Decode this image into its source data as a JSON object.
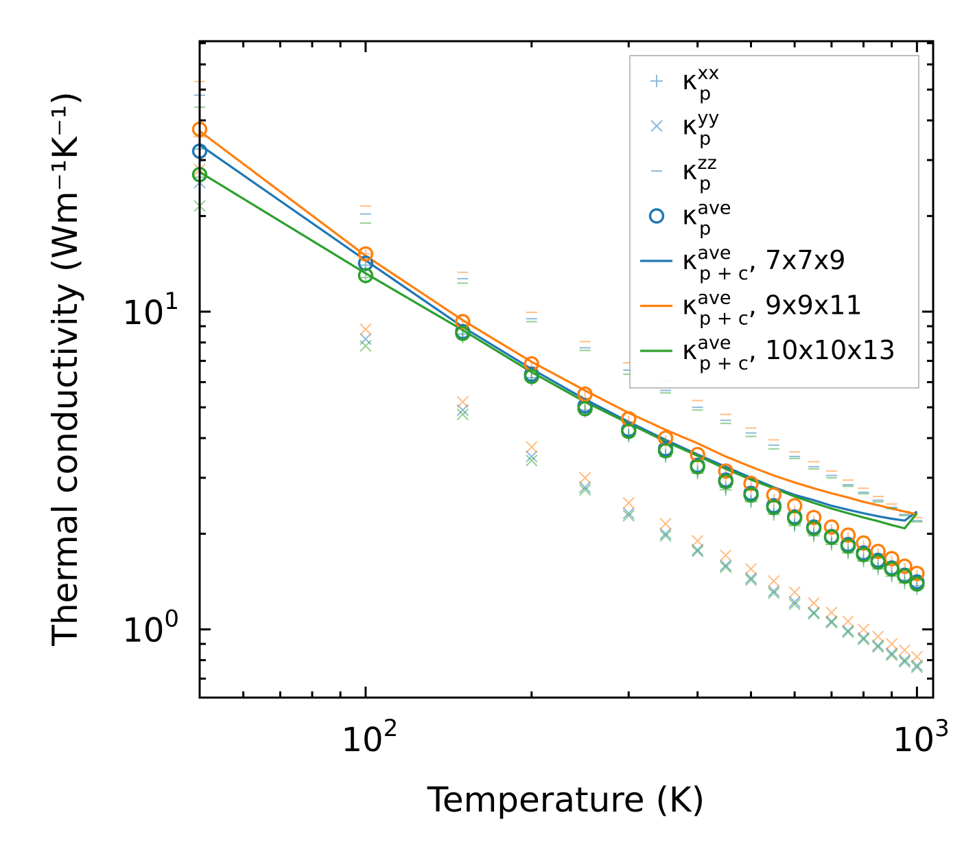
{
  "chart_data": {
    "type": "scatter",
    "scale": {
      "x": "log",
      "y": "log"
    },
    "xlabel": "Temperature (K)",
    "ylabel": "Thermal conductivity (Wm⁻¹K⁻¹)",
    "xlim": [
      50,
      1070
    ],
    "ylim": [
      0.61,
      71
    ],
    "x_ticks": [
      {
        "base": "10",
        "exp": "2",
        "value": 100
      },
      {
        "base": "10",
        "exp": "3",
        "value": 1000
      }
    ],
    "y_ticks": [
      {
        "base": "10",
        "exp": "0",
        "value": 1
      },
      {
        "base": "10",
        "exp": "1",
        "value": 10
      }
    ],
    "x": [
      50,
      100,
      150,
      200,
      250,
      300,
      350,
      400,
      450,
      500,
      550,
      600,
      650,
      700,
      750,
      800,
      850,
      900,
      950,
      1000
    ],
    "meshes": [
      {
        "name": "7x7x9",
        "color": "#1f77b4",
        "kxx": [
          32.5,
          14.0,
          8.5,
          6.2,
          4.9,
          4.1,
          3.55,
          3.15,
          2.8,
          2.55,
          2.35,
          2.15,
          2.0,
          1.88,
          1.77,
          1.67,
          1.58,
          1.5,
          1.43,
          1.37
        ],
        "kyy": [
          25.5,
          8.2,
          4.9,
          3.5,
          2.8,
          2.32,
          2.0,
          1.78,
          1.59,
          1.45,
          1.32,
          1.22,
          1.13,
          1.06,
          0.99,
          0.94,
          0.89,
          0.84,
          0.8,
          0.77
        ],
        "kzz": [
          48.0,
          20.3,
          12.7,
          9.5,
          7.7,
          6.55,
          5.65,
          5.0,
          4.55,
          4.15,
          3.8,
          3.5,
          3.25,
          3.05,
          2.85,
          2.7,
          2.55,
          2.42,
          2.3,
          2.2
        ],
        "kave": [
          32.0,
          14.2,
          8.65,
          6.35,
          5.05,
          4.25,
          3.7,
          3.28,
          2.95,
          2.68,
          2.45,
          2.26,
          2.1,
          1.96,
          1.85,
          1.74,
          1.65,
          1.56,
          1.48,
          1.41
        ],
        "kpc": [
          33.5,
          14.5,
          8.95,
          6.6,
          5.3,
          4.5,
          3.95,
          3.55,
          3.25,
          3.0,
          2.8,
          2.65,
          2.55,
          2.45,
          2.38,
          2.32,
          2.27,
          2.23,
          2.2,
          2.35
        ]
      },
      {
        "name": "9x9x11",
        "color": "#ff7f0e",
        "kxx": [
          35.5,
          15.2,
          9.1,
          6.7,
          5.35,
          4.5,
          3.9,
          3.45,
          3.05,
          2.8,
          2.55,
          2.35,
          2.18,
          2.05,
          1.93,
          1.82,
          1.72,
          1.63,
          1.55,
          1.47
        ],
        "kyy": [
          28.0,
          8.8,
          5.2,
          3.75,
          3.0,
          2.5,
          2.15,
          1.9,
          1.71,
          1.55,
          1.42,
          1.31,
          1.21,
          1.13,
          1.06,
          1.0,
          0.95,
          0.9,
          0.86,
          0.82
        ],
        "kzz": [
          53.0,
          21.5,
          13.3,
          9.95,
          8.05,
          6.9,
          6.05,
          5.25,
          4.75,
          4.3,
          3.95,
          3.62,
          3.37,
          3.15,
          2.95,
          2.78,
          2.62,
          2.48,
          2.35,
          2.25
        ],
        "kave": [
          37.5,
          15.2,
          9.3,
          6.85,
          5.5,
          4.6,
          4.0,
          3.55,
          3.15,
          2.88,
          2.65,
          2.45,
          2.25,
          2.1,
          1.98,
          1.87,
          1.76,
          1.67,
          1.58,
          1.5
        ],
        "kpc": [
          37.0,
          15.0,
          9.4,
          6.95,
          5.65,
          4.8,
          4.25,
          3.85,
          3.5,
          3.25,
          3.05,
          2.9,
          2.78,
          2.68,
          2.6,
          2.52,
          2.46,
          2.4,
          2.35,
          2.3
        ]
      },
      {
        "name": "10x10x13",
        "color": "#2ca02c",
        "kxx": [
          26.5,
          12.8,
          8.3,
          6.1,
          4.85,
          4.05,
          3.5,
          3.1,
          2.75,
          2.52,
          2.3,
          2.12,
          1.97,
          1.85,
          1.74,
          1.64,
          1.55,
          1.47,
          1.4,
          1.34
        ],
        "kyy": [
          21.5,
          7.8,
          4.75,
          3.4,
          2.75,
          2.28,
          1.97,
          1.76,
          1.57,
          1.43,
          1.3,
          1.2,
          1.12,
          1.05,
          0.98,
          0.93,
          0.88,
          0.83,
          0.79,
          0.76
        ],
        "kzz": [
          44.0,
          19.0,
          12.3,
          9.3,
          7.55,
          6.35,
          5.55,
          4.9,
          4.45,
          4.05,
          3.7,
          3.45,
          3.2,
          3.0,
          2.82,
          2.67,
          2.52,
          2.4,
          2.28,
          2.18
        ],
        "kave": [
          27.0,
          13.0,
          8.55,
          6.25,
          4.95,
          4.2,
          3.65,
          3.25,
          2.92,
          2.65,
          2.42,
          2.24,
          2.08,
          1.95,
          1.83,
          1.72,
          1.63,
          1.55,
          1.47,
          1.39
        ],
        "kpc": [
          27.5,
          13.2,
          8.75,
          6.45,
          5.2,
          4.45,
          3.9,
          3.52,
          3.2,
          2.96,
          2.78,
          2.62,
          2.5,
          2.4,
          2.32,
          2.25,
          2.19,
          2.13,
          2.08,
          2.32
        ]
      }
    ],
    "legend": {
      "position": "top-right",
      "entries": [
        {
          "marker": "plus",
          "color": "#1f77b4",
          "sym": "κ",
          "sub": "p",
          "sup": "xx",
          "suffix": ""
        },
        {
          "marker": "x",
          "color": "#1f77b4",
          "sym": "κ",
          "sub": "p",
          "sup": "yy",
          "suffix": ""
        },
        {
          "marker": "dash",
          "color": "#1f77b4",
          "sym": "κ",
          "sub": "p",
          "sup": "zz",
          "suffix": ""
        },
        {
          "marker": "circle",
          "color": "#1f77b4",
          "sym": "κ",
          "sub": "p",
          "sup": "ave",
          "suffix": ""
        },
        {
          "marker": "line",
          "color": "#1f77b4",
          "sym": "κ",
          "sub": "p + c",
          "sup": "ave",
          "suffix": ", 7x7x9"
        },
        {
          "marker": "line",
          "color": "#ff7f0e",
          "sym": "κ",
          "sub": "p + c",
          "sup": "ave",
          "suffix": ", 9x9x11"
        },
        {
          "marker": "line",
          "color": "#2ca02c",
          "sym": "κ",
          "sub": "p + c",
          "sup": "ave",
          "suffix": ", 10x10x13"
        }
      ]
    }
  }
}
